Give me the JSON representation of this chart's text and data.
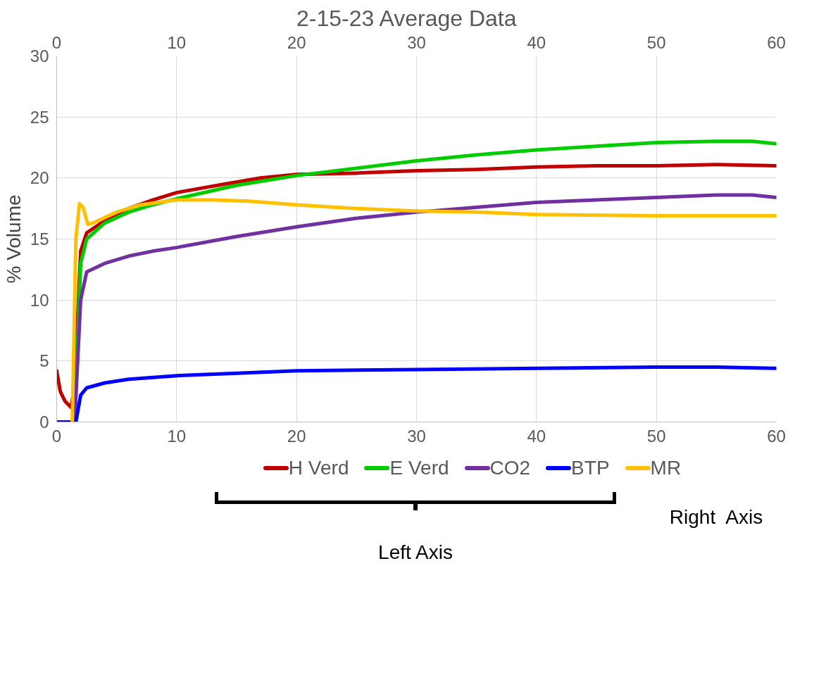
{
  "chart_data": {
    "type": "line",
    "title": "2-15-23    Average Data",
    "ylabel": "% Volume",
    "xlim": [
      0,
      60
    ],
    "xticks": [
      0,
      10,
      20,
      30,
      40,
      50,
      60
    ],
    "x2lim": [
      0,
      60
    ],
    "x2ticks": [
      0,
      10,
      20,
      30,
      40,
      50,
      60
    ],
    "ylim": [
      0,
      30
    ],
    "yticks": [
      0,
      5,
      10,
      15,
      20,
      25,
      30
    ],
    "grid": true,
    "legend": "bottom",
    "marker": "none",
    "line_style": "solid",
    "annotations": [
      "Left Axis",
      "Right  Axis"
    ],
    "series": [
      {
        "name": "H Verd",
        "color": "#c00000",
        "x": [
          0,
          0.3,
          0.7,
          1.2,
          1.5,
          2,
          2.5,
          4,
          6,
          8,
          10,
          14,
          17,
          20,
          25,
          30,
          35,
          40,
          45,
          50,
          55,
          60
        ],
        "values": [
          4.2,
          2.5,
          1.7,
          1.2,
          3,
          14,
          15.5,
          16.5,
          17.5,
          18.2,
          18.8,
          19.5,
          20,
          20.3,
          20.4,
          20.6,
          20.7,
          20.9,
          21,
          21,
          21.1,
          21
        ]
      },
      {
        "name": "E Verd",
        "color": "#00cc00",
        "x": [
          1.5,
          2,
          2.5,
          4,
          6,
          8,
          10,
          15,
          20,
          25,
          30,
          35,
          40,
          45,
          50,
          55,
          58,
          60
        ],
        "values": [
          0,
          13,
          15,
          16.3,
          17.2,
          17.8,
          18.3,
          19.4,
          20.2,
          20.8,
          21.4,
          21.9,
          22.3,
          22.6,
          22.9,
          23,
          23,
          22.8
        ]
      },
      {
        "name": "CO2",
        "color": "#7030a0",
        "x": [
          1.5,
          2,
          2.5,
          4,
          6,
          8,
          10,
          15,
          20,
          25,
          30,
          35,
          40,
          45,
          50,
          55,
          58,
          60
        ],
        "values": [
          0,
          10,
          12.3,
          13,
          13.6,
          14,
          14.3,
          15.2,
          16,
          16.7,
          17.2,
          17.6,
          18,
          18.2,
          18.4,
          18.6,
          18.6,
          18.4
        ]
      },
      {
        "name": "BTP",
        "color": "#0000ff",
        "x": [
          0,
          1.3,
          1.6,
          2,
          2.5,
          4,
          6,
          10,
          15,
          20,
          30,
          40,
          50,
          55,
          60
        ],
        "values": [
          0,
          0,
          0,
          2.2,
          2.8,
          3.2,
          3.5,
          3.8,
          4,
          4.2,
          4.3,
          4.4,
          4.5,
          4.5,
          4.4
        ]
      },
      {
        "name": "MR",
        "color": "#ffc000",
        "x": [
          1.3,
          1.6,
          1.9,
          2.2,
          2.6,
          3,
          5,
          7,
          10,
          13,
          16,
          20,
          25,
          30,
          35,
          40,
          50,
          60
        ],
        "values": [
          0,
          15,
          17.9,
          17.6,
          16.2,
          16.3,
          17.2,
          17.8,
          18.2,
          18.2,
          18.1,
          17.8,
          17.5,
          17.3,
          17.2,
          17,
          16.9,
          16.9
        ]
      }
    ]
  }
}
